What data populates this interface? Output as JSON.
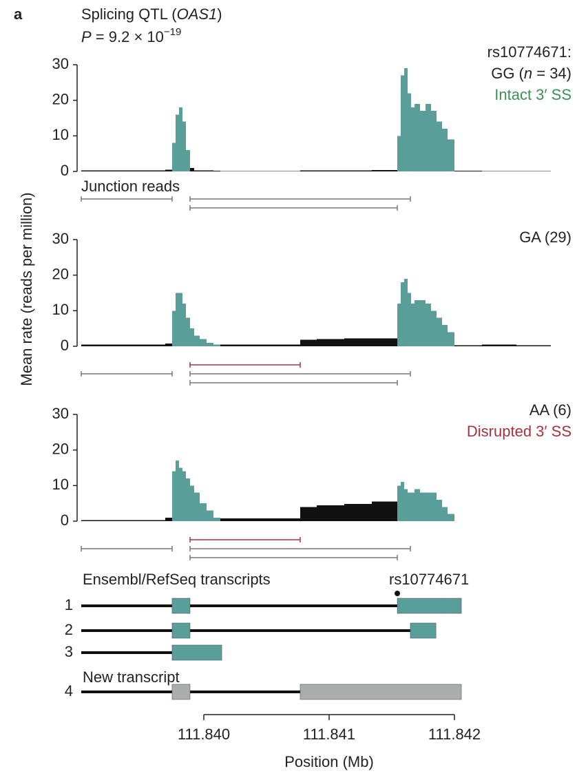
{
  "panel_label": "a",
  "title": {
    "prefix": "Splicing QTL (",
    "gene": "OAS1",
    "suffix": ")"
  },
  "p_value": {
    "symbol": "P",
    "text": " = 9.2 × 10",
    "exponent": "−19"
  },
  "y_label": "Mean rate (reads per million)",
  "x_axis": {
    "xlim": [
      111.839022,
      111.842769
    ],
    "xticks": [
      {
        "value": 111.84,
        "label": "111.840"
      },
      {
        "value": 111.841,
        "label": "111.841"
      },
      {
        "value": 111.842,
        "label": "111.842"
      }
    ],
    "label": "Position (Mb)"
  },
  "chart_data": [
    {
      "type": "histogram",
      "color": "#111111",
      "highlight_color": "#5a9e9a",
      "labels": [
        [
          {
            "text": "rs10774671:"
          }
        ],
        [
          {
            "text": "GG ("
          },
          {
            "text": "n",
            "italic": true
          },
          {
            "text": " = 34)"
          }
        ],
        [
          {
            "text": "Intact 3′ SS",
            "color": "#3d8f5a"
          }
        ]
      ],
      "junction_label": "Junction reads",
      "bins": [
        111.839022,
        111.839692,
        111.839747,
        111.839775,
        111.839802,
        111.83983,
        111.839857,
        111.83989,
        111.839923,
        111.839967,
        111.840022,
        111.840077,
        111.840132,
        111.840769,
        111.840901,
        111.841121,
        111.841341,
        111.841544,
        111.841571,
        111.841599,
        111.841626,
        111.841654,
        111.841681,
        111.841725,
        111.841769,
        111.841813,
        111.841857,
        111.841901,
        111.841945,
        111.842,
        111.84222,
        111.842495,
        111.842769
      ],
      "values": [
        0.3,
        0.5,
        8,
        16,
        18,
        14,
        6,
        1,
        0.3,
        0.3,
        0.3,
        0.2,
        0.1,
        0.3,
        0.3,
        0.3,
        0.4,
        10,
        27,
        29,
        22,
        18,
        19,
        17,
        19,
        17,
        14,
        12,
        9,
        0.2,
        0.1,
        0.1
      ],
      "highlight": [
        [
          111.839747,
          111.83989
        ],
        [
          111.841544,
          111.842
        ]
      ],
      "ylim": [
        0,
        30
      ],
      "yticks": [
        0,
        10,
        20,
        30
      ],
      "junctions": [
        {
          "start": 111.839022,
          "end": 111.839747,
          "color": "#777777"
        },
        {
          "start": 111.83989,
          "end": 111.841648,
          "color": "#777777"
        },
        {
          "start": 111.83989,
          "end": 111.841544,
          "color": "#777777"
        }
      ]
    },
    {
      "type": "histogram",
      "color": "#111111",
      "highlight_color": "#5a9e9a",
      "labels": [
        [
          {
            "text": "GA (29)"
          }
        ]
      ],
      "bins": [
        111.839022,
        111.839692,
        111.839747,
        111.839775,
        111.839802,
        111.83983,
        111.839857,
        111.83989,
        111.839923,
        111.839967,
        111.840022,
        111.840077,
        111.840132,
        111.840769,
        111.840901,
        111.841121,
        111.841341,
        111.841544,
        111.841571,
        111.841599,
        111.841626,
        111.841654,
        111.841681,
        111.841725,
        111.841769,
        111.841813,
        111.841857,
        111.841901,
        111.841945,
        111.842,
        111.84222,
        111.842495,
        111.842769
      ],
      "values": [
        0.5,
        0.8,
        10,
        15,
        15,
        12,
        8,
        5,
        3,
        2,
        1,
        0.5,
        0.5,
        1.8,
        2,
        2.2,
        2.2,
        12,
        18,
        19,
        15,
        12,
        13,
        13,
        12,
        10,
        8,
        6,
        4,
        0.3,
        0.5,
        0.3
      ],
      "highlight": [
        [
          111.839747,
          111.840132
        ],
        [
          111.841544,
          111.842
        ]
      ],
      "ylim": [
        0,
        30
      ],
      "yticks": [
        0,
        10,
        20,
        30
      ],
      "junctions": [
        {
          "start": 111.83989,
          "end": 111.840769,
          "color": "#a8323c"
        },
        {
          "start": 111.839022,
          "end": 111.839747,
          "color": "#777777"
        },
        {
          "start": 111.83989,
          "end": 111.841648,
          "color": "#777777"
        },
        {
          "start": 111.83989,
          "end": 111.841544,
          "color": "#777777"
        }
      ]
    },
    {
      "type": "histogram",
      "color": "#111111",
      "highlight_color": "#5a9e9a",
      "labels": [
        [
          {
            "text": "AA (6)"
          }
        ],
        [
          {
            "text": "Disrupted 3′ SS",
            "color": "#a8323c"
          }
        ]
      ],
      "bins": [
        111.839022,
        111.839692,
        111.839747,
        111.839775,
        111.839802,
        111.83983,
        111.839857,
        111.83989,
        111.839923,
        111.839967,
        111.840022,
        111.840077,
        111.840132,
        111.840769,
        111.840901,
        111.841121,
        111.841341,
        111.841544,
        111.841571,
        111.841599,
        111.841626,
        111.841654,
        111.841681,
        111.841725,
        111.841769,
        111.841813,
        111.841857,
        111.841901,
        111.841945,
        111.842,
        111.84222,
        111.842495,
        111.842769
      ],
      "values": [
        0.3,
        1,
        14,
        17,
        15,
        14,
        12,
        10,
        8,
        5,
        3,
        1,
        0.8,
        4,
        4.5,
        4.8,
        5.5,
        10,
        11,
        9,
        8,
        8,
        9,
        8,
        8,
        8,
        6,
        4,
        2,
        0,
        0,
        0
      ],
      "highlight": [
        [
          111.839747,
          111.840132
        ],
        [
          111.841544,
          111.842
        ]
      ],
      "ylim": [
        0,
        30
      ],
      "yticks": [
        0,
        10,
        20,
        30
      ],
      "junctions": [
        {
          "start": 111.83989,
          "end": 111.840769,
          "color": "#a8323c"
        },
        {
          "start": 111.839022,
          "end": 111.839747,
          "color": "#777777"
        },
        {
          "start": 111.83989,
          "end": 111.841648,
          "color": "#777777"
        },
        {
          "start": 111.83989,
          "end": 111.841544,
          "color": "#777777"
        }
      ]
    }
  ],
  "transcripts": {
    "title": "Ensembl/RefSeq transcripts",
    "snp": {
      "label": "rs10774671",
      "position": 111.841544
    },
    "new_label": "New transcript",
    "items": [
      {
        "label": "1",
        "start": 111.839022,
        "end": 111.841544,
        "exon_color": "#5a9e9a",
        "exons": [
          [
            111.839747,
            111.83989
          ],
          [
            111.841544,
            111.842055
          ]
        ]
      },
      {
        "label": "2",
        "start": 111.839022,
        "end": 111.841648,
        "exon_color": "#5a9e9a",
        "exons": [
          [
            111.839747,
            111.83989
          ],
          [
            111.841648,
            111.841852
          ]
        ]
      },
      {
        "label": "3",
        "start": 111.839022,
        "end": 111.839747,
        "exon_color": "#5a9e9a",
        "exons": [
          [
            111.839747,
            111.840143
          ]
        ]
      },
      {
        "label": "4",
        "start": 111.839022,
        "end": 111.840769,
        "exon_color": "#a9aeac",
        "exons": [
          [
            111.839747,
            111.83989
          ],
          [
            111.840769,
            111.842055
          ]
        ]
      }
    ]
  }
}
